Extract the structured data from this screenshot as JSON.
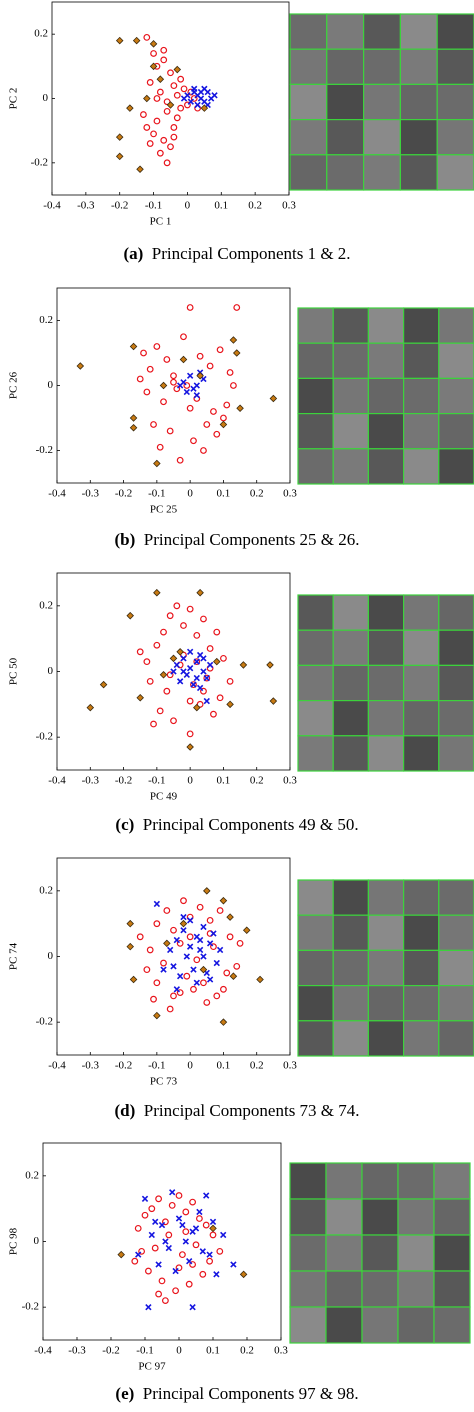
{
  "chart_data": [
    {
      "type": "scatter",
      "label": "(a)",
      "caption": "Principal Components 1 & 2.",
      "xlabel": "PC 1",
      "ylabel": "PC 2",
      "xlim": [
        -0.4,
        0.3
      ],
      "ylim": [
        -0.3,
        0.3
      ],
      "xticks": [
        -0.4,
        -0.3,
        -0.2,
        -0.1,
        0,
        0.1,
        0.2,
        0.3
      ],
      "yticks": [
        -0.2,
        0,
        0.2
      ],
      "series": [
        {
          "marker": "circle",
          "color": "#e8141c",
          "x": [
            -0.12,
            -0.1,
            -0.09,
            -0.07,
            -0.05,
            -0.04,
            -0.02,
            -0.11,
            -0.08,
            -0.06,
            -0.03,
            -0.01,
            0.0,
            0.02,
            -0.13,
            -0.09,
            -0.06,
            -0.04,
            -0.1,
            -0.07,
            -0.05,
            -0.03,
            -0.08,
            -0.12,
            -0.06,
            -0.02,
            0.01,
            -0.04,
            -0.09,
            -0.07,
            -0.11,
            0.03
          ],
          "values": [
            0.19,
            0.14,
            0.1,
            0.15,
            0.08,
            0.04,
            0.06,
            0.05,
            0.02,
            -0.01,
            0.01,
            0.03,
            -0.02,
            0.0,
            -0.05,
            -0.07,
            -0.04,
            -0.09,
            -0.11,
            -0.13,
            -0.15,
            -0.06,
            -0.17,
            -0.09,
            -0.2,
            -0.03,
            0.02,
            -0.12,
            0.0,
            0.12,
            -0.14,
            -0.03
          ]
        },
        {
          "marker": "x",
          "color": "#1515e0",
          "x": [
            0.0,
            0.02,
            0.04,
            0.05,
            0.06,
            0.07,
            0.03,
            0.01,
            0.05,
            0.08,
            0.04,
            -0.01,
            0.06,
            0.02,
            0.03
          ],
          "values": [
            0.01,
            0.02,
            0.0,
            -0.01,
            0.02,
            0.0,
            -0.02,
            -0.01,
            0.03,
            0.01,
            0.02,
            0.0,
            -0.02,
            0.03,
            0.01
          ]
        },
        {
          "marker": "diamond",
          "color": "#c87a12",
          "x": [
            -0.2,
            -0.15,
            -0.17,
            -0.2,
            -0.2,
            -0.14,
            -0.1,
            -0.1,
            -0.12,
            -0.08,
            -0.03,
            -0.05,
            0.05
          ],
          "values": [
            0.18,
            0.18,
            -0.03,
            -0.12,
            -0.18,
            -0.22,
            0.17,
            0.1,
            0.0,
            0.06,
            0.09,
            -0.02,
            -0.03
          ]
        }
      ]
    },
    {
      "type": "scatter",
      "label": "(b)",
      "caption": "Principal Components 25 & 26.",
      "xlabel": "PC 25",
      "ylabel": "PC 26",
      "xlim": [
        -0.4,
        0.3
      ],
      "ylim": [
        -0.3,
        0.3
      ],
      "xticks": [
        -0.4,
        -0.3,
        -0.2,
        -0.1,
        0,
        0.1,
        0.2,
        0.3
      ],
      "yticks": [
        -0.2,
        0,
        0.2
      ],
      "series": [
        {
          "marker": "circle",
          "color": "#e8141c",
          "x": [
            -0.14,
            -0.12,
            -0.1,
            -0.07,
            -0.05,
            -0.02,
            0.0,
            0.03,
            0.06,
            0.09,
            0.12,
            0.14,
            -0.13,
            -0.08,
            -0.04,
            0.02,
            0.07,
            0.1,
            -0.11,
            -0.06,
            0.01,
            0.05,
            0.11,
            -0.09,
            -0.03,
            0.04,
            0.08,
            -0.01,
            -0.15,
            0.13,
            0.0,
            -0.05
          ],
          "values": [
            0.1,
            0.05,
            0.12,
            0.08,
            0.03,
            0.15,
            0.24,
            0.09,
            0.06,
            0.11,
            0.04,
            0.24,
            -0.02,
            -0.05,
            -0.01,
            -0.04,
            -0.08,
            -0.1,
            -0.12,
            -0.14,
            -0.17,
            -0.12,
            -0.06,
            -0.19,
            -0.23,
            -0.2,
            -0.15,
            0.0,
            0.02,
            0.0,
            -0.07,
            0.01
          ]
        },
        {
          "marker": "x",
          "color": "#1515e0",
          "x": [
            -0.02,
            0.0,
            0.02,
            0.03,
            -0.01,
            0.01,
            0.04,
            -0.03,
            0.02
          ],
          "values": [
            0.01,
            0.03,
            0.0,
            0.04,
            -0.02,
            -0.01,
            0.02,
            0.0,
            -0.03
          ]
        },
        {
          "marker": "diamond",
          "color": "#c87a12",
          "x": [
            -0.33,
            -0.17,
            -0.17,
            -0.17,
            -0.1,
            0.13,
            0.14,
            0.15,
            0.25,
            0.1,
            -0.02,
            0.03,
            -0.08
          ],
          "values": [
            0.06,
            0.12,
            -0.1,
            -0.13,
            -0.24,
            0.14,
            0.1,
            -0.07,
            -0.04,
            -0.12,
            0.08,
            0.03,
            0.0
          ]
        }
      ]
    },
    {
      "type": "scatter",
      "label": "(c)",
      "caption": "Principal Components 49 & 50.",
      "xlabel": "PC 49",
      "ylabel": "PC 50",
      "xlim": [
        -0.4,
        0.3
      ],
      "ylim": [
        -0.3,
        0.3
      ],
      "xticks": [
        -0.4,
        -0.3,
        -0.2,
        -0.1,
        0,
        0.1,
        0.2,
        0.3
      ],
      "yticks": [
        -0.2,
        0,
        0.2
      ],
      "series": [
        {
          "marker": "circle",
          "color": "#e8141c",
          "x": [
            -0.13,
            -0.1,
            -0.08,
            -0.06,
            -0.04,
            -0.02,
            0.0,
            0.02,
            0.04,
            0.06,
            0.08,
            0.1,
            -0.12,
            -0.07,
            -0.03,
            0.01,
            0.05,
            0.09,
            -0.09,
            -0.05,
            0.03,
            0.07,
            -0.11,
            0.0,
            0.04,
            -0.02,
            0.06,
            -0.06,
            0.02,
            -0.15,
            0.12,
            0.0
          ],
          "values": [
            0.03,
            0.08,
            0.12,
            0.17,
            0.2,
            0.14,
            0.19,
            0.11,
            0.16,
            0.07,
            0.12,
            0.04,
            -0.03,
            -0.06,
            0.02,
            -0.04,
            -0.02,
            -0.08,
            -0.12,
            -0.15,
            -0.1,
            -0.13,
            -0.16,
            -0.19,
            -0.06,
            0.05,
            0.01,
            -0.01,
            0.03,
            0.06,
            -0.03,
            -0.09
          ]
        },
        {
          "marker": "x",
          "color": "#1515e0",
          "x": [
            -0.04,
            -0.02,
            0.0,
            0.02,
            0.04,
            0.05,
            -0.03,
            -0.01,
            0.01,
            0.03,
            0.06,
            -0.05,
            0.02,
            0.0,
            0.04,
            0.05,
            -0.02,
            0.03
          ],
          "values": [
            0.02,
            0.04,
            0.01,
            0.03,
            0.0,
            -0.02,
            -0.03,
            -0.01,
            -0.04,
            0.05,
            0.02,
            0.0,
            -0.02,
            0.06,
            0.04,
            -0.09,
            0.0,
            -0.05
          ]
        },
        {
          "marker": "diamond",
          "color": "#c87a12",
          "x": [
            -0.26,
            -0.18,
            -0.15,
            -0.3,
            -0.1,
            -0.05,
            -0.08,
            0.03,
            0.0,
            0.02,
            0.08,
            0.16,
            0.24,
            0.25,
            0.12,
            -0.03
          ],
          "values": [
            -0.04,
            0.17,
            -0.08,
            -0.11,
            0.24,
            0.04,
            -0.01,
            0.24,
            -0.23,
            -0.11,
            0.03,
            0.02,
            0.02,
            -0.09,
            -0.1,
            0.06
          ]
        }
      ]
    },
    {
      "type": "scatter",
      "label": "(d)",
      "caption": "Principal Components 73 & 74.",
      "xlabel": "PC 73",
      "ylabel": "PC 74",
      "xlim": [
        -0.4,
        0.3
      ],
      "ylim": [
        -0.3,
        0.3
      ],
      "xticks": [
        -0.4,
        -0.3,
        -0.2,
        -0.1,
        0,
        0.1,
        0.2,
        0.3
      ],
      "yticks": [
        -0.2,
        0,
        0.2
      ],
      "series": [
        {
          "marker": "circle",
          "color": "#e8141c",
          "x": [
            -0.15,
            -0.12,
            -0.1,
            -0.07,
            -0.05,
            -0.02,
            0.0,
            0.03,
            0.06,
            0.09,
            0.12,
            0.15,
            -0.13,
            -0.08,
            -0.03,
            0.02,
            0.07,
            0.11,
            -0.1,
            -0.05,
            0.01,
            0.05,
            0.1,
            -0.06,
            -0.01,
            0.04,
            0.08,
            0.14,
            -0.11,
            0.0,
            0.06,
            -0.03
          ],
          "values": [
            0.06,
            0.02,
            0.1,
            0.14,
            0.08,
            0.17,
            0.12,
            0.15,
            0.11,
            0.14,
            0.06,
            0.04,
            -0.04,
            -0.02,
            0.04,
            -0.01,
            0.03,
            -0.05,
            -0.08,
            -0.12,
            -0.1,
            -0.14,
            -0.1,
            -0.16,
            -0.06,
            -0.08,
            -0.12,
            -0.03,
            -0.13,
            0.06,
            0.07,
            -0.11
          ]
        },
        {
          "marker": "x",
          "color": "#1515e0",
          "x": [
            -0.1,
            -0.06,
            -0.04,
            -0.02,
            0.0,
            0.02,
            0.04,
            0.06,
            0.08,
            -0.05,
            -0.03,
            -0.01,
            0.01,
            0.03,
            0.05,
            0.07,
            -0.08,
            0.0,
            0.02,
            -0.02,
            0.04,
            0.06,
            0.09,
            -0.04,
            0.03
          ],
          "values": [
            0.16,
            0.02,
            0.05,
            0.08,
            0.03,
            0.06,
            0.0,
            0.04,
            -0.02,
            -0.03,
            -0.06,
            0.0,
            -0.04,
            0.02,
            -0.05,
            0.07,
            -0.04,
            0.11,
            -0.08,
            0.12,
            0.09,
            -0.07,
            0.02,
            -0.1,
            0.05
          ]
        },
        {
          "marker": "diamond",
          "color": "#c87a12",
          "x": [
            -0.18,
            -0.18,
            -0.17,
            -0.1,
            -0.07,
            0.05,
            0.1,
            0.12,
            0.17,
            0.21,
            0.13,
            0.1,
            0.04,
            -0.02
          ],
          "values": [
            0.1,
            0.03,
            -0.07,
            -0.18,
            0.04,
            0.2,
            0.17,
            0.12,
            0.08,
            -0.07,
            -0.06,
            -0.2,
            -0.04,
            0.1
          ]
        }
      ]
    },
    {
      "type": "scatter",
      "label": "(e)",
      "caption": "Principal Components 97 & 98.",
      "xlabel": "PC 97",
      "ylabel": "PC 98",
      "xlim": [
        -0.4,
        0.3
      ],
      "ylim": [
        -0.3,
        0.3
      ],
      "xticks": [
        -0.4,
        -0.3,
        -0.2,
        -0.1,
        0,
        0.1,
        0.2,
        0.3
      ],
      "yticks": [
        -0.2,
        0,
        0.2
      ],
      "series": [
        {
          "marker": "circle",
          "color": "#e8141c",
          "x": [
            -0.12,
            -0.1,
            -0.08,
            -0.06,
            -0.04,
            -0.02,
            0.0,
            0.02,
            0.04,
            0.06,
            0.08,
            0.1,
            -0.11,
            -0.07,
            -0.03,
            0.01,
            0.05,
            0.09,
            -0.09,
            -0.05,
            0.0,
            0.03,
            0.07,
            -0.06,
            -0.01,
            0.04,
            -0.13,
            0.12,
            0.02,
            -0.04
          ],
          "values": [
            0.04,
            0.08,
            0.1,
            0.13,
            0.06,
            0.11,
            0.14,
            0.09,
            0.12,
            0.07,
            0.05,
            0.02,
            -0.03,
            -0.02,
            0.02,
            -0.04,
            -0.01,
            -0.06,
            -0.09,
            -0.12,
            -0.08,
            -0.13,
            -0.1,
            -0.16,
            -0.15,
            -0.07,
            -0.06,
            -0.03,
            0.03,
            -0.18
          ]
        },
        {
          "marker": "x",
          "color": "#1515e0",
          "x": [
            -0.1,
            0.08,
            -0.09,
            0.04,
            0.16,
            -0.02,
            -0.12,
            -0.08,
            -0.05,
            -0.03,
            0.0,
            0.02,
            0.05,
            0.07,
            0.1,
            0.13,
            -0.06,
            -0.01,
            0.03,
            0.06,
            0.09,
            -0.04,
            0.01,
            0.11,
            -0.07,
            0.04
          ],
          "values": [
            0.13,
            0.14,
            -0.2,
            -0.2,
            -0.07,
            0.15,
            -0.04,
            0.02,
            0.05,
            -0.02,
            0.07,
            0.0,
            0.04,
            -0.03,
            0.06,
            0.02,
            -0.07,
            -0.09,
            -0.06,
            0.09,
            -0.04,
            0.0,
            0.05,
            -0.1,
            0.06,
            0.03
          ]
        },
        {
          "marker": "diamond",
          "color": "#c87a12",
          "x": [
            -0.17,
            0.19,
            0.1
          ],
          "values": [
            -0.04,
            -0.1,
            0.04
          ]
        }
      ]
    }
  ]
}
